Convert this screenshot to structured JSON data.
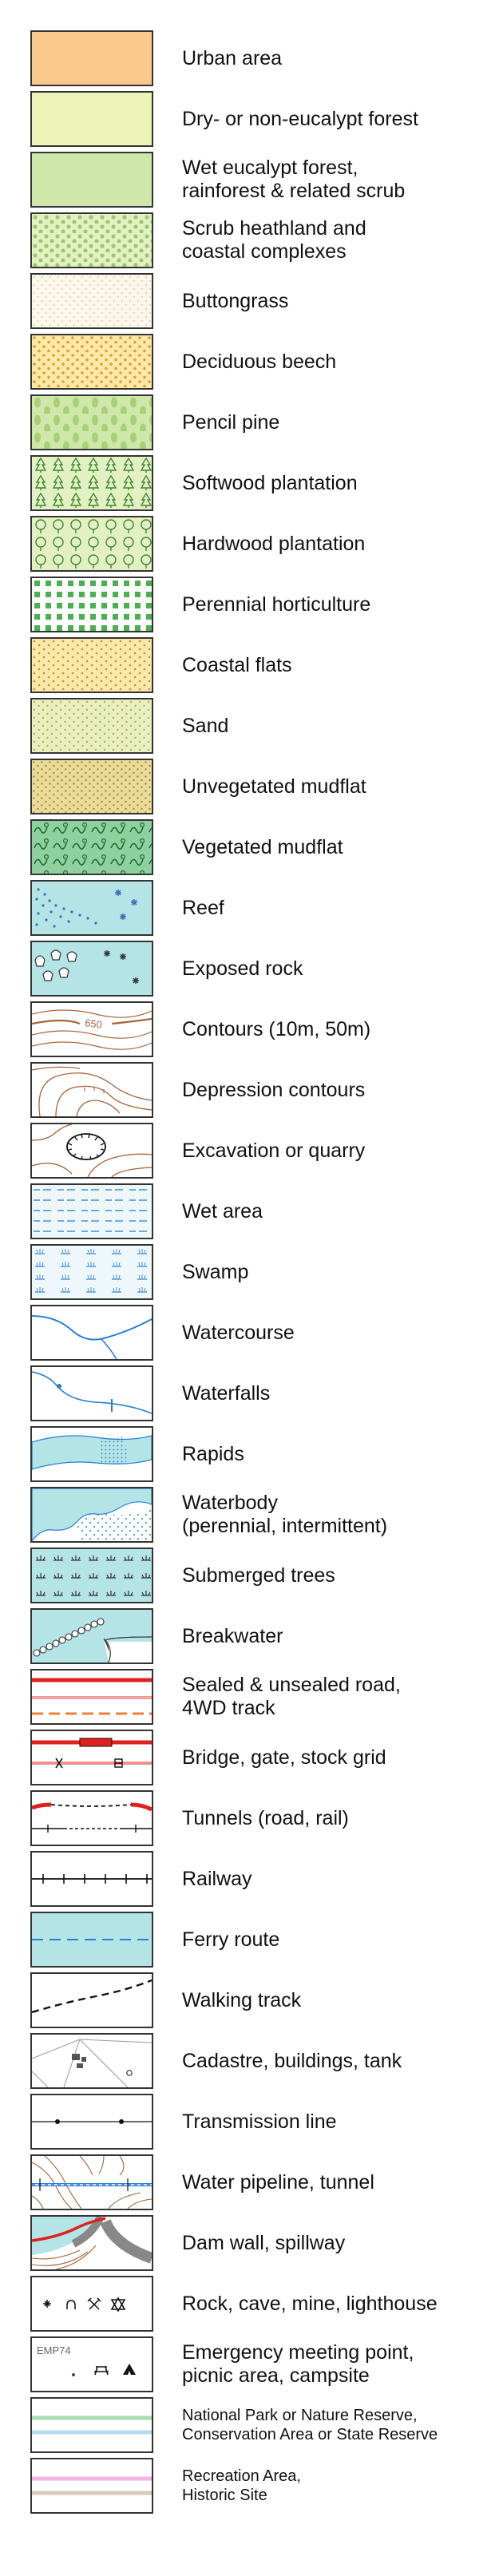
{
  "legend": {
    "items": [
      {
        "id": "urban-area",
        "label": "Urban area"
      },
      {
        "id": "dry-forest",
        "label": "Dry- or non-eucalypt forest"
      },
      {
        "id": "wet-forest",
        "label": "Wet eucalypt forest,\nrainforest & related scrub"
      },
      {
        "id": "scrub-heathland",
        "label": "Scrub heathland and\ncoastal complexes"
      },
      {
        "id": "buttongrass",
        "label": "Buttongrass"
      },
      {
        "id": "deciduous-beech",
        "label": "Deciduous beech"
      },
      {
        "id": "pencil-pine",
        "label": "Pencil pine"
      },
      {
        "id": "softwood-plantation",
        "label": "Softwood plantation"
      },
      {
        "id": "hardwood-plantation",
        "label": "Hardwood plantation"
      },
      {
        "id": "perennial-horticulture",
        "label": "Perennial horticulture"
      },
      {
        "id": "coastal-flats",
        "label": "Coastal flats"
      },
      {
        "id": "sand",
        "label": "Sand"
      },
      {
        "id": "unvegetated-mudflat",
        "label": "Unvegetated mudflat"
      },
      {
        "id": "vegetated-mudflat",
        "label": "Vegetated mudflat"
      },
      {
        "id": "reef",
        "label": "Reef"
      },
      {
        "id": "exposed-rock",
        "label": "Exposed rock"
      },
      {
        "id": "contours",
        "label": "Contours (10m, 50m)",
        "contour_value": "650"
      },
      {
        "id": "depression-contours",
        "label": "Depression contours"
      },
      {
        "id": "excavation",
        "label": "Excavation or quarry"
      },
      {
        "id": "wet-area",
        "label": "Wet area"
      },
      {
        "id": "swamp",
        "label": "Swamp"
      },
      {
        "id": "watercourse",
        "label": "Watercourse"
      },
      {
        "id": "waterfalls",
        "label": "Waterfalls"
      },
      {
        "id": "rapids",
        "label": "Rapids"
      },
      {
        "id": "waterbody",
        "label": "Waterbody\n(perennial, intermittent)"
      },
      {
        "id": "submerged-trees",
        "label": "Submerged trees"
      },
      {
        "id": "breakwater",
        "label": "Breakwater"
      },
      {
        "id": "roads",
        "label": "Sealed & unsealed road,\n4WD track"
      },
      {
        "id": "bridge-gate",
        "label": "Bridge, gate, stock grid"
      },
      {
        "id": "tunnels",
        "label": "Tunnels (road, rail)"
      },
      {
        "id": "railway",
        "label": "Railway"
      },
      {
        "id": "ferry-route",
        "label": "Ferry route"
      },
      {
        "id": "walking-track",
        "label": "Walking track"
      },
      {
        "id": "cadastre",
        "label": "Cadastre, buildings, tank"
      },
      {
        "id": "transmission-line",
        "label": "Transmission line"
      },
      {
        "id": "water-pipeline",
        "label": "Water pipeline, tunnel"
      },
      {
        "id": "dam-wall",
        "label": "Dam wall, spillway"
      },
      {
        "id": "rock-cave",
        "label": "Rock, cave, mine, lighthouse"
      },
      {
        "id": "emergency-point",
        "label": "Emergency meeting point,\npicnic area, campsite",
        "code": "EMP74"
      },
      {
        "id": "national-park",
        "label": "National Park or Nature Reserve,\nConservation Area or State Reserve",
        "small": true
      },
      {
        "id": "recreation-area",
        "label": "Recreation Area,\nHistoric Site",
        "small": true
      }
    ]
  },
  "colors": {
    "urban": "#fbc98b",
    "dry_forest": "#ebf4b6",
    "wet_forest": "#cfe8aa",
    "water": "#b4e4e6",
    "contour": "#a4663a",
    "road_red": "#e0201e",
    "road_orange": "#f08030",
    "ferry": "#2a7fd2"
  }
}
